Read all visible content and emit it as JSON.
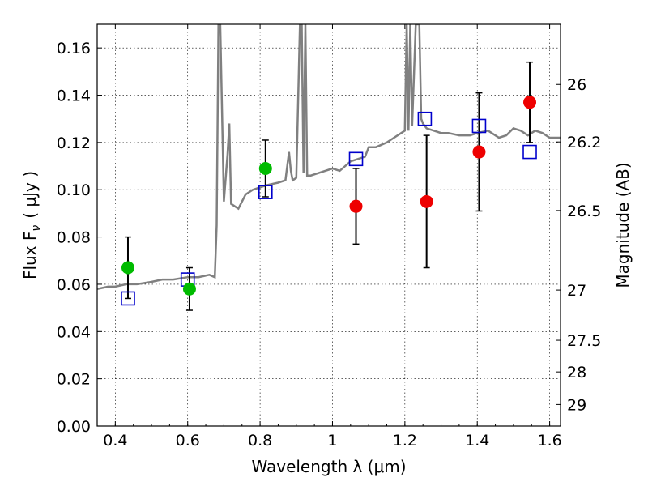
{
  "chart_data": {
    "type": "scatter",
    "title": "",
    "xlabel": "Wavelength  λ (μm)",
    "ylabel": "Flux  F",
    "ylabel_sub": "ν",
    "ylabel_unit": "( μJy )",
    "y2label": "Magnitude (AB)",
    "xlim": [
      0.35,
      1.63
    ],
    "ylim": [
      0.0,
      0.17
    ],
    "grid": true,
    "x_ticks": [
      0.4,
      0.6,
      0.8,
      1.0,
      1.2,
      1.4,
      1.6
    ],
    "x_tick_labels": [
      "0.4",
      "0.6",
      "0.8",
      "1",
      "1.2",
      "1.4",
      "1.6"
    ],
    "y_ticks": [
      0.0,
      0.02,
      0.04,
      0.06,
      0.08,
      0.1,
      0.12,
      0.14,
      0.16
    ],
    "y_tick_labels": [
      "0.00",
      "0.02",
      "0.04",
      "0.06",
      "0.08",
      "0.10",
      "0.12",
      "0.14",
      "0.16"
    ],
    "mag_ticks": [
      26,
      26.2,
      26.5,
      27,
      27.5,
      28,
      29
    ],
    "mag_tick_labels": [
      "26",
      "26.2",
      "26.5",
      "27",
      "27.5",
      "28",
      "29"
    ],
    "series": [
      {
        "kind": "spectrum",
        "color": "#808080",
        "x": [
          0.35,
          0.38,
          0.4,
          0.43,
          0.46,
          0.5,
          0.53,
          0.56,
          0.6,
          0.63,
          0.66,
          0.675,
          0.68,
          0.685,
          0.69,
          0.7,
          0.71,
          0.715,
          0.72,
          0.74,
          0.76,
          0.78,
          0.8,
          0.82,
          0.85,
          0.87,
          0.88,
          0.885,
          0.89,
          0.9,
          0.91,
          0.915,
          0.92,
          0.925,
          0.93,
          0.94,
          0.96,
          0.98,
          1.0,
          1.02,
          1.05,
          1.07,
          1.09,
          1.1,
          1.12,
          1.15,
          1.17,
          1.19,
          1.2,
          1.205,
          1.21,
          1.215,
          1.22,
          1.23,
          1.24,
          1.245,
          1.25,
          1.26,
          1.28,
          1.3,
          1.32,
          1.35,
          1.38,
          1.4,
          1.43,
          1.46,
          1.48,
          1.5,
          1.52,
          1.54,
          1.56,
          1.58,
          1.6,
          1.63
        ],
        "y": [
          0.058,
          0.059,
          0.059,
          0.06,
          0.06,
          0.061,
          0.062,
          0.062,
          0.063,
          0.063,
          0.064,
          0.063,
          0.085,
          0.17,
          0.17,
          0.095,
          0.115,
          0.128,
          0.094,
          0.092,
          0.098,
          0.1,
          0.101,
          0.102,
          0.103,
          0.104,
          0.116,
          0.108,
          0.104,
          0.105,
          0.17,
          0.17,
          0.107,
          0.17,
          0.106,
          0.106,
          0.107,
          0.108,
          0.109,
          0.108,
          0.112,
          0.113,
          0.114,
          0.118,
          0.118,
          0.12,
          0.122,
          0.124,
          0.125,
          0.17,
          0.125,
          0.17,
          0.127,
          0.17,
          0.17,
          0.13,
          0.128,
          0.126,
          0.125,
          0.124,
          0.124,
          0.123,
          0.123,
          0.124,
          0.125,
          0.122,
          0.123,
          0.126,
          0.125,
          0.123,
          0.125,
          0.124,
          0.122,
          0.122
        ]
      },
      {
        "kind": "model-squares",
        "color": "#0000cc",
        "x": [
          0.435,
          0.6,
          0.815,
          1.065,
          1.255,
          1.405,
          1.545
        ],
        "y": [
          0.054,
          0.062,
          0.099,
          0.113,
          0.13,
          0.127,
          0.116
        ]
      },
      {
        "kind": "observed-green",
        "color": "#00bb00",
        "x": [
          0.435,
          0.605,
          0.815
        ],
        "y": [
          0.067,
          0.058,
          0.109
        ],
        "err": [
          0.013,
          0.009,
          0.012
        ]
      },
      {
        "kind": "observed-red",
        "color": "#ee0000",
        "x": [
          1.065,
          1.26,
          1.405,
          1.545
        ],
        "y": [
          0.093,
          0.095,
          0.116,
          0.137
        ],
        "err": [
          0.016,
          0.028,
          0.025,
          0.017
        ]
      }
    ]
  }
}
